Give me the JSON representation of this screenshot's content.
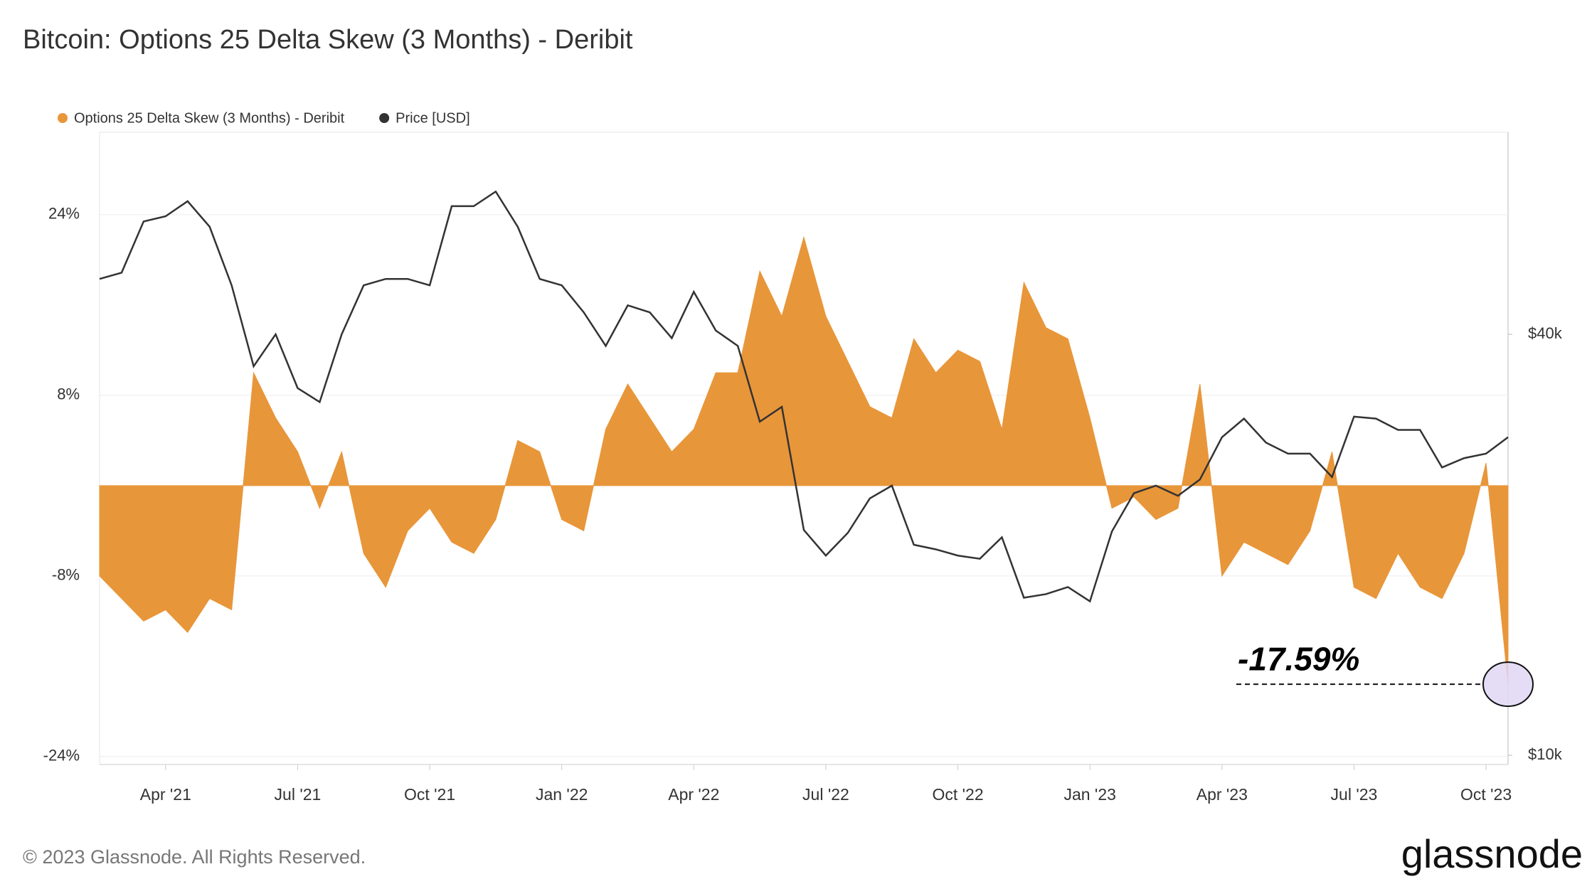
{
  "chart_data": {
    "type": "area",
    "title": "Bitcoin: Options 25 Delta Skew (3 Months) - Deribit",
    "categories": [
      null,
      null,
      null,
      "Apr '21",
      null,
      null,
      null,
      null,
      null,
      "Jul '21",
      null,
      null,
      null,
      null,
      null,
      "Oct '21",
      null,
      null,
      null,
      null,
      null,
      "Jan '22",
      null,
      null,
      null,
      null,
      null,
      "Apr '22",
      null,
      null,
      null,
      null,
      null,
      "Jul '22",
      null,
      null,
      null,
      null,
      null,
      "Oct '22",
      null,
      null,
      null,
      null,
      null,
      "Jan '23",
      null,
      null,
      null,
      null,
      null,
      "Apr '23",
      null,
      null,
      null,
      null,
      null,
      "Jul '23",
      null,
      null,
      null,
      null,
      null,
      "Oct '23",
      null
    ],
    "series": [
      {
        "name": "Options 25 Delta Skew (3 Months) - Deribit",
        "type": "area",
        "color": "#e8963a",
        "values": [
          -8,
          -10,
          -12,
          -11,
          -13,
          -10,
          -11,
          10,
          6,
          3,
          -2,
          3,
          -6,
          -9,
          -4,
          -2,
          -5,
          -6,
          -3,
          4,
          3,
          -3,
          -4,
          5,
          9,
          6,
          3,
          5,
          10,
          10,
          19,
          15,
          22,
          15,
          11,
          7,
          6,
          13,
          10,
          12,
          11,
          5,
          18,
          14,
          13,
          6,
          -2,
          -1,
          -3,
          -2,
          9,
          -8,
          -5,
          -6,
          -7,
          -4,
          3,
          -9,
          -10,
          -6,
          -9,
          -10,
          -6,
          2,
          -17.59
        ],
        "value_labels": [
          null,
          null,
          null,
          null,
          null,
          null,
          null,
          null,
          null,
          null,
          null,
          null,
          null,
          null,
          null,
          null,
          null,
          null,
          null,
          null,
          null,
          null,
          null,
          null,
          null,
          null,
          null,
          null,
          null,
          null,
          null,
          null,
          null,
          null,
          null,
          null,
          null,
          null,
          null,
          null,
          null,
          null,
          null,
          null,
          null,
          null,
          null,
          null,
          null,
          null,
          null,
          null,
          null,
          null,
          null,
          null,
          null,
          null,
          null,
          null,
          null,
          null,
          null,
          null,
          "-17.59%"
        ]
      },
      {
        "name": "Price [USD]",
        "type": "line",
        "color": "#333333",
        "axis": "y2",
        "values": [
          48000,
          49000,
          58000,
          59000,
          62000,
          57000,
          47000,
          36000,
          40000,
          33500,
          32000,
          40000,
          47000,
          48000,
          48000,
          47000,
          61000,
          61000,
          64000,
          57000,
          48000,
          47000,
          43000,
          38500,
          44000,
          43000,
          39500,
          46000,
          40500,
          38500,
          30000,
          31500,
          21000,
          19300,
          20800,
          23300,
          24300,
          20000,
          19700,
          19300,
          19100,
          20500,
          16800,
          17000,
          17400,
          16600,
          20900,
          23700,
          24300,
          23500,
          24800,
          28500,
          30300,
          28000,
          27000,
          27000,
          25000,
          30500,
          30300,
          29200,
          29200,
          25800,
          26600,
          27000,
          28500
        ]
      }
    ],
    "ylim": [
      -24.7,
      31.3
    ],
    "yticks": [
      {
        "value": -24,
        "label": "-24%"
      },
      {
        "value": -8,
        "label": "-8%"
      },
      {
        "value": 8,
        "label": "8%"
      },
      {
        "value": 24,
        "label": "24%"
      }
    ],
    "y2lim": [
      9700,
      77800
    ],
    "y2log": true,
    "y2ticks": [
      {
        "value": 10000,
        "label": "$10k"
      },
      {
        "value": 40000,
        "label": "$40k"
      }
    ],
    "grid": true,
    "legend": "top-left"
  },
  "copyright": "© 2023 Glassnode. All Rights Reserved.",
  "brand": "glassnode"
}
